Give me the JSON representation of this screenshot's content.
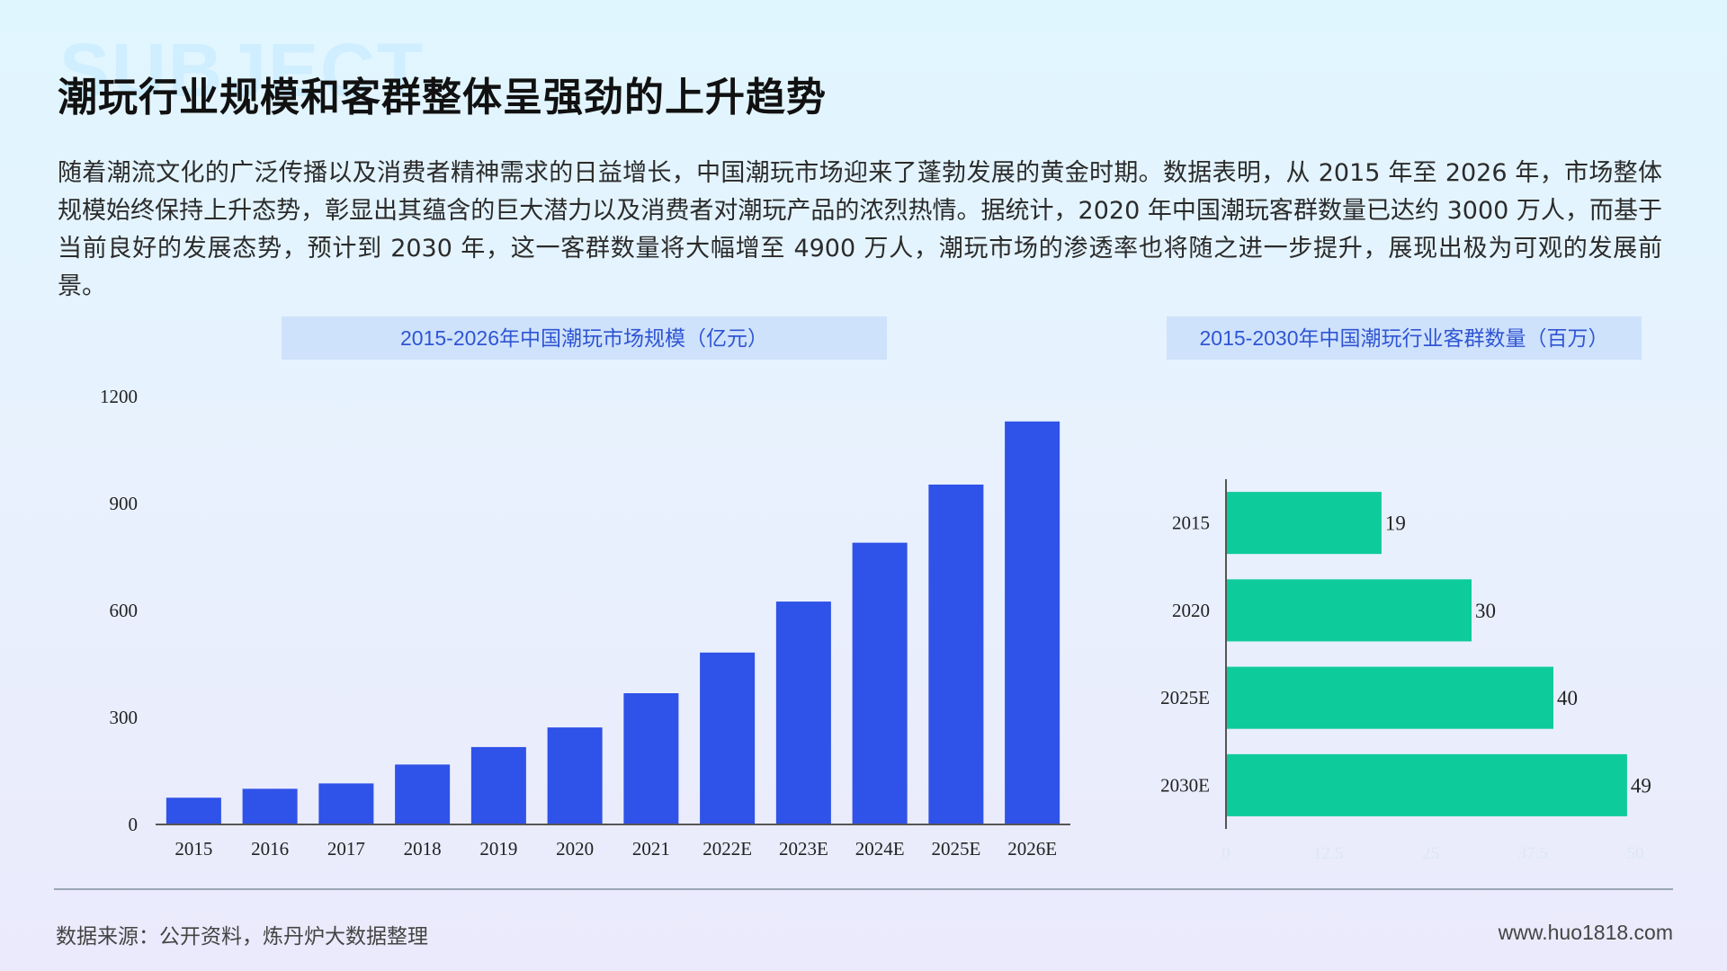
{
  "watermark": "SUBJECT",
  "title": "潮玩行业规模和客群整体呈强劲的上升趋势",
  "paragraph": "随着潮流文化的广泛传播以及消费者精神需求的日益增长，中国潮玩市场迎来了蓬勃发展的黄金时期。数据表明，从 2015 年至 2026 年，市场整体规模始终保持上升态势，彰显出其蕴含的巨大潜力以及消费者对潮玩产品的浓烈热情。据统计，2020 年中国潮玩客群数量已达约 3000 万人，而基于当前良好的发展态势，预计到 2030 年，这一客群数量将大幅增至 4900 万人，潮玩市场的渗透率也将随之进一步提升，展现出极为可观的发展前景。",
  "footer": {
    "source": "数据来源：公开资料，炼丹炉大数据整理",
    "site": "www.huo1818.com"
  },
  "chart_data": [
    {
      "type": "bar",
      "title": "2015-2026年中国潮玩市场规模（亿元）",
      "categories": [
        "2015",
        "2016",
        "2017",
        "2018",
        "2019",
        "2020",
        "2021",
        "2022E",
        "2023E",
        "2024E",
        "2025E",
        "2026E"
      ],
      "values": [
        75,
        100,
        115,
        168,
        217,
        272,
        368,
        482,
        625,
        790,
        953,
        1130
      ],
      "ylim": [
        0,
        1200
      ],
      "yticks": [
        "0",
        "300",
        "600",
        "900",
        "1200"
      ],
      "color": "#2f52e8",
      "grid": false
    },
    {
      "type": "bar",
      "orientation": "horizontal",
      "title": "2015-2030年中国潮玩行业客群数量（百万）",
      "categories": [
        "2015",
        "2020",
        "2025E",
        "2030E"
      ],
      "values": [
        19,
        30,
        40,
        49
      ],
      "data_labels": [
        "19",
        "30",
        "40",
        "49"
      ],
      "xlim": [
        0,
        50
      ],
      "xticks": [
        "0",
        "12.5",
        "25",
        "37.5",
        "50"
      ],
      "color": "#0ecb9b",
      "grid": false
    }
  ]
}
